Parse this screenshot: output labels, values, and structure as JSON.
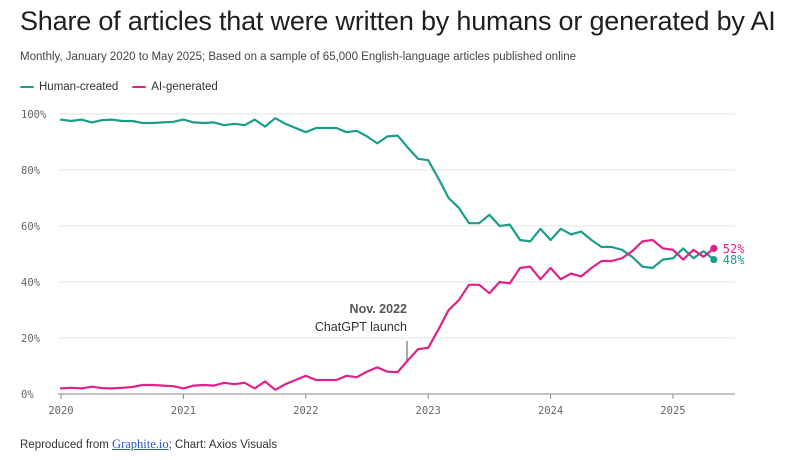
{
  "chart_data": {
    "type": "line",
    "title": "Share of articles that were written by humans or generated by AI",
    "subtitle": "Monthly, January 2020 to May 2025; Based on a sample of 65,000 English-language articles published online",
    "ylim": [
      0,
      100
    ],
    "y_ticks": [
      "0%",
      "20%",
      "40%",
      "60%",
      "80%",
      "100%"
    ],
    "x_ticks": [
      "2020",
      "2021",
      "2022",
      "2023",
      "2024",
      "2025"
    ],
    "grid": true,
    "legend_position": "top-left",
    "annotation": {
      "title": "Nov. 2022",
      "text": "ChatGPT launch",
      "x": "2022-11"
    },
    "series": [
      {
        "name": "Human-created",
        "color": "#1a9e8a",
        "end_label": "48%",
        "x": [
          "2020-01",
          "2020-02",
          "2020-03",
          "2020-04",
          "2020-05",
          "2020-06",
          "2020-07",
          "2020-08",
          "2020-09",
          "2020-10",
          "2020-11",
          "2020-12",
          "2021-01",
          "2021-02",
          "2021-03",
          "2021-04",
          "2021-05",
          "2021-06",
          "2021-07",
          "2021-08",
          "2021-09",
          "2021-10",
          "2021-11",
          "2021-12",
          "2022-01",
          "2022-02",
          "2022-03",
          "2022-04",
          "2022-05",
          "2022-06",
          "2022-07",
          "2022-08",
          "2022-09",
          "2022-10",
          "2022-11",
          "2022-12",
          "2023-01",
          "2023-02",
          "2023-03",
          "2023-04",
          "2023-05",
          "2023-06",
          "2023-07",
          "2023-08",
          "2023-09",
          "2023-10",
          "2023-11",
          "2023-12",
          "2024-01",
          "2024-02",
          "2024-03",
          "2024-04",
          "2024-05",
          "2024-06",
          "2024-07",
          "2024-08",
          "2024-09",
          "2024-10",
          "2024-11",
          "2024-12",
          "2025-01",
          "2025-02",
          "2025-03",
          "2025-04",
          "2025-05"
        ],
        "values": [
          98,
          97.5,
          98,
          97,
          97.8,
          98,
          97.5,
          97.5,
          96.8,
          96.8,
          97,
          97.2,
          98,
          97,
          96.8,
          97,
          96,
          96.5,
          96,
          98,
          95.5,
          98.5,
          96.5,
          95,
          93.5,
          95,
          95,
          95,
          93.5,
          94,
          92,
          89.5,
          92,
          92.3,
          88,
          84,
          83.5,
          77,
          70,
          66.5,
          61,
          61,
          64,
          60,
          60.5,
          55,
          54.5,
          59,
          55,
          59,
          57,
          58,
          55,
          52.5,
          52.5,
          51.5,
          49,
          45.5,
          45,
          48,
          48.5,
          52,
          48.5,
          51,
          48
        ]
      },
      {
        "name": "AI-generated",
        "color": "#e0218a",
        "end_label": "52%",
        "x": [
          "2020-01",
          "2020-02",
          "2020-03",
          "2020-04",
          "2020-05",
          "2020-06",
          "2020-07",
          "2020-08",
          "2020-09",
          "2020-10",
          "2020-11",
          "2020-12",
          "2021-01",
          "2021-02",
          "2021-03",
          "2021-04",
          "2021-05",
          "2021-06",
          "2021-07",
          "2021-08",
          "2021-09",
          "2021-10",
          "2021-11",
          "2021-12",
          "2022-01",
          "2022-02",
          "2022-03",
          "2022-04",
          "2022-05",
          "2022-06",
          "2022-07",
          "2022-08",
          "2022-09",
          "2022-10",
          "2022-11",
          "2022-12",
          "2023-01",
          "2023-02",
          "2023-03",
          "2023-04",
          "2023-05",
          "2023-06",
          "2023-07",
          "2023-08",
          "2023-09",
          "2023-10",
          "2023-11",
          "2023-12",
          "2024-01",
          "2024-02",
          "2024-03",
          "2024-04",
          "2024-05",
          "2024-06",
          "2024-07",
          "2024-08",
          "2024-09",
          "2024-10",
          "2024-11",
          "2024-12",
          "2025-01",
          "2025-02",
          "2025-03",
          "2025-04",
          "2025-05"
        ],
        "values": [
          2,
          2.2,
          2,
          2.6,
          2.1,
          2,
          2.2,
          2.5,
          3.2,
          3.2,
          3,
          2.8,
          2,
          3,
          3.2,
          3,
          4,
          3.5,
          4,
          2,
          4.5,
          1.5,
          3.5,
          5,
          6.5,
          5,
          5,
          5,
          6.5,
          6,
          8,
          9.5,
          8,
          7.8,
          12,
          16,
          16.5,
          23,
          30,
          33.5,
          39,
          39,
          36,
          40,
          39.5,
          45,
          45.5,
          41,
          45,
          41,
          43,
          42,
          45,
          47.5,
          47.5,
          48.5,
          51,
          54.5,
          55,
          52,
          51.5,
          48,
          51.5,
          49,
          52
        ]
      }
    ]
  },
  "footer": {
    "prefix": "Reproduced from ",
    "link": "Graphite.io",
    "suffix": "; Chart: Axios Visuals"
  }
}
